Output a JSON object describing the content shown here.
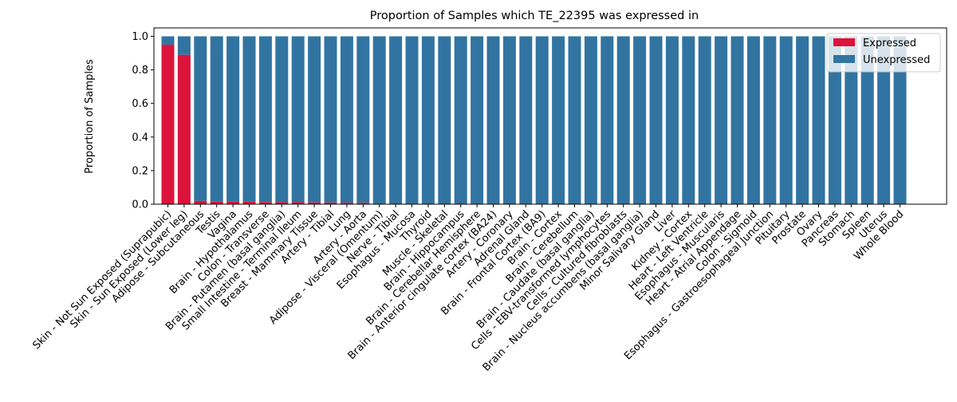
{
  "chart_data": {
    "type": "bar",
    "stacked": true,
    "title": "Proportion of Samples which TE_22395 was expressed in",
    "xlabel": "",
    "ylabel": "Proportion of Samples",
    "ylim": [
      0,
      1.05
    ],
    "yticks": [
      "0.0",
      "0.2",
      "0.4",
      "0.6",
      "0.8",
      "1.0"
    ],
    "legend_position": "top-right",
    "grid": false,
    "categories": [
      "Skin - Not Sun Exposed (Suprapubic)",
      "Skin - Sun Exposed (Lower leg)",
      "Adipose - Subcutaneous",
      "Testis",
      "Vagina",
      "Brain - Hypothalamus",
      "Colon - Transverse",
      "Brain - Putamen (basal ganglia)",
      "Small Intestine - Terminal Ileum",
      "Breast - Mammary Tissue",
      "Artery - Tibial",
      "Lung",
      "Artery - Aorta",
      "Adipose - Visceral (Omentum)",
      "Nerve - Tibial",
      "Esophagus - Mucosa",
      "Thyroid",
      "Muscle - Skeletal",
      "Brain - Hippocampus",
      "Brain - Cerebellar Hemisphere",
      "Brain - Anterior cingulate cortex (BA24)",
      "Artery - Coronary",
      "Adrenal Gland",
      "Brain - Frontal Cortex (BA9)",
      "Brain - Cortex",
      "Brain - Cerebellum",
      "Brain - Caudate (basal ganglia)",
      "Cells - EBV-transformed lymphocytes",
      "Cells - Cultured fibroblasts",
      "Brain - Nucleus accumbens (basal ganglia)",
      "Minor Salivary Gland",
      "Liver",
      "Kidney - Cortex",
      "Heart - Left Ventricle",
      "Esophagus - Muscularis",
      "Heart - Atrial Appendage",
      "Colon - Sigmoid",
      "Esophagus - Gastroesophageal Junction",
      "Pituitary",
      "Prostate",
      "Ovary",
      "Pancreas",
      "Stomach",
      "Spleen",
      "Uterus",
      "Whole Blood"
    ],
    "series": [
      {
        "name": "Expressed",
        "color": "#dc143c",
        "values": [
          0.95,
          0.89,
          0.02,
          0.015,
          0.015,
          0.015,
          0.013,
          0.012,
          0.012,
          0.011,
          0.01,
          0.009,
          0.008,
          0,
          0,
          0,
          0,
          0,
          0,
          0,
          0,
          0,
          0,
          0,
          0,
          0,
          0,
          0,
          0,
          0,
          0,
          0,
          0,
          0,
          0,
          0,
          0,
          0,
          0,
          0,
          0,
          0,
          0,
          0,
          0,
          0
        ]
      },
      {
        "name": "Unexpressed",
        "color": "#3274a1",
        "values": [
          0.05,
          0.11,
          0.98,
          0.985,
          0.985,
          0.985,
          0.987,
          0.988,
          0.988,
          0.989,
          0.99,
          0.991,
          0.992,
          1,
          1,
          1,
          1,
          1,
          1,
          1,
          1,
          1,
          1,
          1,
          1,
          1,
          1,
          1,
          1,
          1,
          1,
          1,
          1,
          1,
          1,
          1,
          1,
          1,
          1,
          1,
          1,
          1,
          1,
          1,
          1,
          1
        ]
      }
    ]
  }
}
